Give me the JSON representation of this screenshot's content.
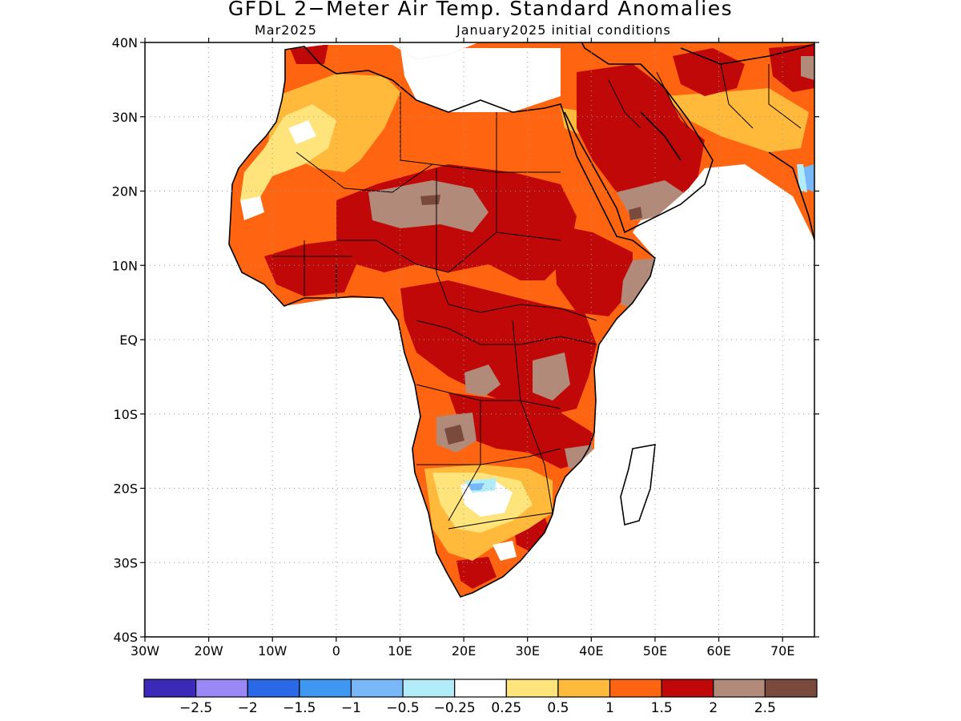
{
  "header": {
    "title": "GFDL 2−Meter Air Temp. Standard Anomalies",
    "valid_month": "Mar2025",
    "initial_conditions": "January2025 initial conditions"
  },
  "axes": {
    "lat_labels": [
      "40N",
      "30N",
      "20N",
      "10N",
      "EQ",
      "10S",
      "20S",
      "30S",
      "40S"
    ],
    "lon_labels": [
      "30W",
      "20W",
      "10W",
      "0",
      "10E",
      "20E",
      "30E",
      "40E",
      "50E",
      "60E",
      "70E"
    ],
    "lat_values": [
      40,
      30,
      20,
      10,
      0,
      -10,
      -20,
      -30,
      -40
    ],
    "lon_values": [
      -30,
      -20,
      -10,
      0,
      10,
      20,
      30,
      40,
      50,
      60,
      70
    ],
    "lon_range": [
      -30,
      75
    ],
    "lat_range": [
      -40,
      40
    ],
    "grid": "dotted"
  },
  "colorbar": {
    "colors": [
      "#3b2aba",
      "#9a88f6",
      "#2a6ae8",
      "#3e98f2",
      "#78b8f8",
      "#b2ecf8",
      "#ffffff",
      "#ffe47c",
      "#ffb93b",
      "#ff6410",
      "#c00808",
      "#b28a7a",
      "#7a4a3c"
    ],
    "labels": [
      "−2.5",
      "−2",
      "−1.5",
      "−1",
      "−0.5",
      "−0.25",
      "0.25",
      "0.5",
      "1",
      "1.5",
      "2",
      "2.5"
    ]
  }
}
